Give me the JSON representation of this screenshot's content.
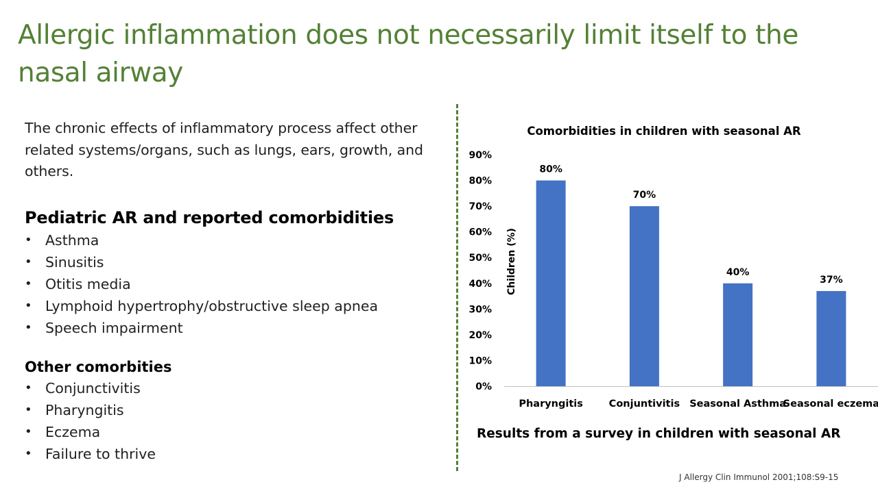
{
  "slide": {
    "title": "Allergic inflammation does not necessarily limit itself to the nasal airway",
    "intro": "The chronic effects of inflammatory process affect other related systems/organs, such as lungs, ears, growth, and others.",
    "section1": {
      "heading": "Pediatric AR and reported comorbidities",
      "items": [
        "Asthma",
        "Sinusitis",
        "Otitis media",
        "Lymphoid hypertrophy/obstructive sleep apnea",
        "Speech impairment"
      ]
    },
    "section2": {
      "heading": "Other comorbities",
      "items": [
        "Conjunctivitis",
        "Pharyngitis",
        "Eczema",
        "Failure to thrive"
      ]
    },
    "caption": "Results from a survey in children with seasonal AR",
    "citation": "J Allergy Clin Immunol 2001;108:S9-15"
  },
  "colors": {
    "title": "#538135",
    "bar": "#4472c4",
    "divider": "#538135"
  },
  "chart_data": {
    "type": "bar",
    "title": "Comorbidities in children with seasonal AR",
    "categories": [
      "Pharyngitis",
      "Conjuntivitis",
      "Seasonal Asthma",
      "Seasonal eczema"
    ],
    "values": [
      80,
      70,
      40,
      37
    ],
    "data_labels": [
      "80%",
      "70%",
      "40%",
      "37%"
    ],
    "ylabel": "Children (%)",
    "xlabel": "",
    "ylim": [
      0,
      90
    ],
    "yticks": [
      "0%",
      "10%",
      "20%",
      "30%",
      "40%",
      "50%",
      "60%",
      "70%",
      "80%",
      "90%"
    ],
    "grid": false,
    "legend": "none"
  }
}
